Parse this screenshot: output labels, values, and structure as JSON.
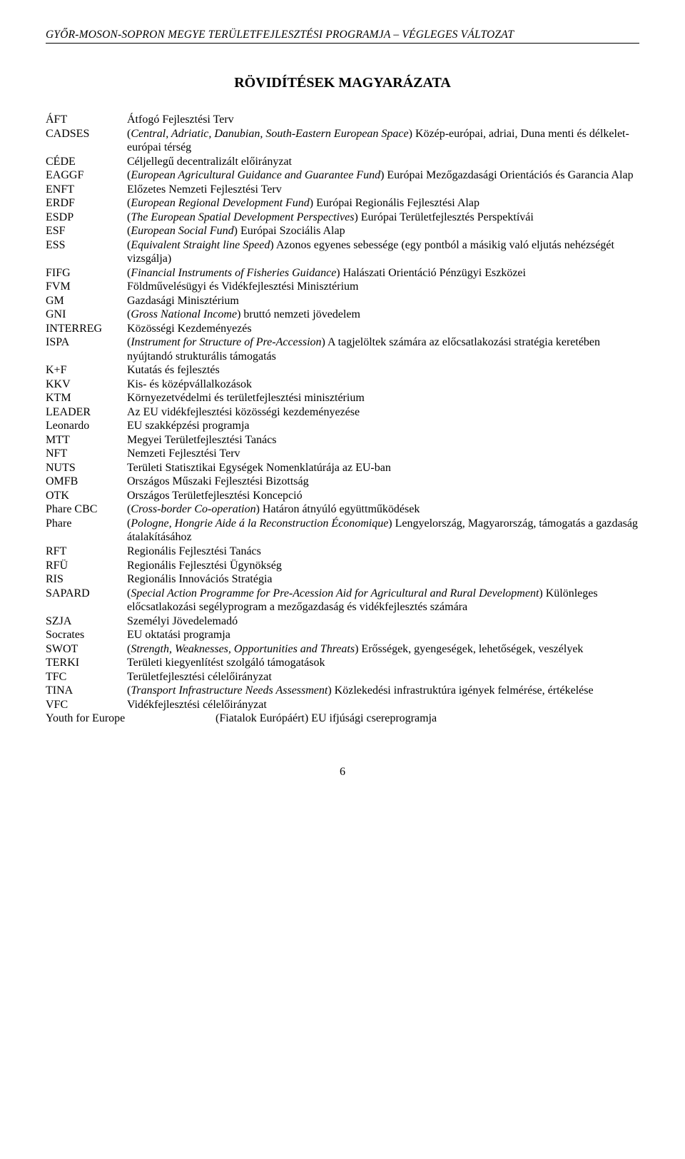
{
  "header": "GYŐR-MOSON-SOPRON MEGYE TERÜLETFEJLESZTÉSI PROGRAMJA – VÉGLEGES VÁLTOZAT",
  "title": "RÖVIDÍTÉSEK MAGYARÁZATA",
  "entries": [
    {
      "abbr": "ÁFT",
      "def": "Átfogó Fejlesztési Terv"
    },
    {
      "abbr": "CADSES",
      "def": "(<i>Central, Adriatic, Danubian, South-Eastern European Space</i>) Közép-európai, adriai, Duna menti és délkelet-európai térség"
    },
    {
      "abbr": "CÉDE",
      "def": "Céljellegű decentralizált előirányzat"
    },
    {
      "abbr": "EAGGF",
      "def": "(<i>European Agricultural Guidance and Guarantee Fund</i>) Európai Mezőgazdasági Orientációs és Garancia Alap"
    },
    {
      "abbr": "ENFT",
      "def": "Előzetes Nemzeti Fejlesztési Terv"
    },
    {
      "abbr": "ERDF",
      "def": "(<i>European Regional Development Fund</i>) Európai Regionális Fejlesztési Alap"
    },
    {
      "abbr": "ESDP",
      "def": "(<i>The European Spatial Development Perspectives</i>) Európai Területfejlesztés Perspektívái"
    },
    {
      "abbr": "ESF",
      "def": "(<i>European Social Fund</i>) Európai Szociális Alap"
    },
    {
      "abbr": "ESS",
      "def": "(<i>Equivalent Straight line Speed</i>) Azonos egyenes sebessége (egy pontból a másikig való eljutás nehézségét vizsgálja)"
    },
    {
      "abbr": "FIFG",
      "def": "(<i>Financial Instruments of Fisheries Guidance</i>) Halászati Orientáció Pénzügyi Eszközei"
    },
    {
      "abbr": "FVM",
      "def": "Földművelésügyi és Vidékfejlesztési Minisztérium"
    },
    {
      "abbr": "GM",
      "def": "Gazdasági Minisztérium"
    },
    {
      "abbr": "GNI",
      "def": "(<i>Gross National Income</i>) bruttó nemzeti jövedelem"
    },
    {
      "abbr": "INTERREG",
      "def": "Közösségi Kezdeményezés"
    },
    {
      "abbr": "ISPA",
      "def": "(<i>Instrument for Structure of Pre-Accession</i>) A tagjelöltek számára az előcsatlakozási stratégia keretében nyújtandó strukturális támogatás"
    },
    {
      "abbr": "K+F",
      "def": "Kutatás és fejlesztés"
    },
    {
      "abbr": "KKV",
      "def": "Kis- és középvállalkozások"
    },
    {
      "abbr": "KTM",
      "def": "Környezetvédelmi és területfejlesztési minisztérium"
    },
    {
      "abbr": "LEADER",
      "def": "Az EU vidékfejlesztési közösségi kezdeményezése"
    },
    {
      "abbr": "Leonardo",
      "def": "EU szakképzési programja"
    },
    {
      "abbr": "MTT",
      "def": "Megyei Területfejlesztési Tanács"
    },
    {
      "abbr": "NFT",
      "def": "Nemzeti Fejlesztési Terv"
    },
    {
      "abbr": "NUTS",
      "def": "Területi Statisztikai Egységek Nomenklatúrája az EU-ban"
    },
    {
      "abbr": "OMFB",
      "def": "Országos Műszaki Fejlesztési Bizottság"
    },
    {
      "abbr": "OTK",
      "def": "Országos Területfejlesztési Koncepció"
    },
    {
      "abbr": "Phare CBC",
      "def": "(<i>Cross-border Co-operation</i>) Határon átnyúló együttműködések"
    },
    {
      "abbr": "Phare",
      "def": "(<i>Pologne, Hongrie Aide á la Reconstruction Économique</i>) Lengyelország, Magyarország, támogatás a gazdaság átalakításához"
    },
    {
      "abbr": "RFT",
      "def": "Regionális Fejlesztési Tanács"
    },
    {
      "abbr": "RFÜ",
      "def": "Regionális Fejlesztési Ügynökség"
    },
    {
      "abbr": "RIS",
      "def": "Regionális Innovációs Stratégia"
    },
    {
      "abbr": "SAPARD",
      "def": "(<i>Special Action Programme for Pre-Acession Aid for Agricultural and Rural Development</i>) Különleges előcsatlakozási segélyprogram a mezőgazdaság és vidékfejlesztés számára"
    },
    {
      "abbr": "SZJA",
      "def": "Személyi Jövedelemadó"
    },
    {
      "abbr": "Socrates",
      "def": "EU oktatási programja"
    },
    {
      "abbr": "SWOT",
      "def": "(<i>Strength, Weaknesses, Opportunities and Threats</i>) Erősségek, gyengeségek, lehetőségek, veszélyek"
    },
    {
      "abbr": "TERKI",
      "def": "Területi kiegyenlítést szolgáló támogatások"
    },
    {
      "abbr": "TFC",
      "def": "Területfejlesztési célelőirányzat"
    },
    {
      "abbr": "TINA",
      "def": "(<i>Transport Infrastructure Needs Assessment</i>) Közlekedési infrastruktúra igények felmérése, értékelése"
    },
    {
      "abbr": "VFC",
      "def": "Vidékfejlesztési célelőirányzat"
    }
  ],
  "last_entry": {
    "abbr": "Youth for Europe",
    "def": "(Fiatalok Európáért) EU ifjúsági csereprogramja"
  },
  "page_number": "6"
}
